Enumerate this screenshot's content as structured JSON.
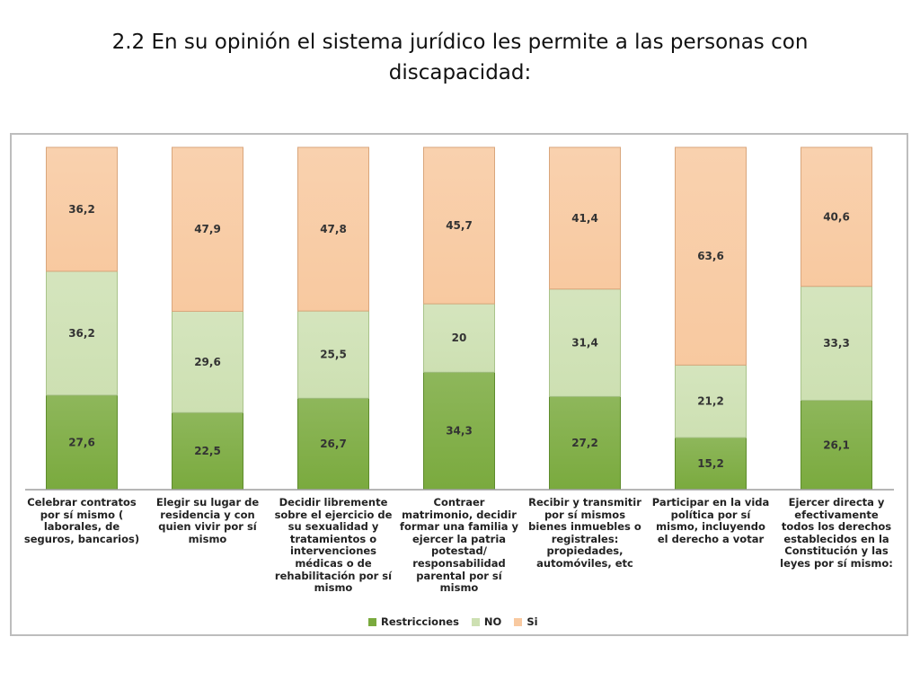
{
  "title": "2.2 En su opinión el sistema jurídico les permite a las personas con discapacidad:",
  "chart_data": {
    "type": "bar",
    "stacked": true,
    "grid": false,
    "legend_position": "bottom",
    "ylim": [
      0,
      100
    ],
    "categories": [
      "Celebrar contratos por sí mismo ( laborales, de seguros, bancarios)",
      "Elegir su lugar de residencia y con quien vivir por sí mismo",
      "Decidir libremente sobre el ejercicio de su sexualidad y tratamientos o intervenciones médicas o de rehabilitación por sí mismo",
      "Contraer matrimonio, decidir formar una familia y ejercer la patria potestad/ responsabilidad parental por sí mismo",
      "Recibir y transmitir por sí mismos bienes inmuebles o registrales: propiedades, automóviles, etc",
      "Participar en la vida política por sí mismo, incluyendo el derecho a votar",
      "Ejercer directa y efectivamente todos los derechos establecidos en la Constitución y las leyes por sí mismo:"
    ],
    "series": [
      {
        "name": "Restricciones",
        "color": "#7aaa3e",
        "values": [
          27.6,
          22.5,
          26.7,
          34.3,
          27.2,
          15.2,
          26.1
        ],
        "labels": [
          "27,6",
          "22,5",
          "26,7",
          "34,3",
          "27,2",
          "15,2",
          "26,1"
        ]
      },
      {
        "name": "NO",
        "color": "#cde0b2",
        "values": [
          36.2,
          29.6,
          25.5,
          20,
          31.4,
          21.2,
          33.3
        ],
        "labels": [
          "36,2",
          "29,6",
          "25,5",
          "20",
          "31,4",
          "21,2",
          "33,3"
        ]
      },
      {
        "name": "Si",
        "color": "#f8c9a0",
        "values": [
          36.2,
          47.9,
          47.8,
          45.7,
          41.4,
          63.6,
          40.6
        ],
        "labels": [
          "36,2",
          "47,9",
          "47,8",
          "45,7",
          "41,4",
          "63,6",
          "40,6"
        ]
      }
    ]
  }
}
